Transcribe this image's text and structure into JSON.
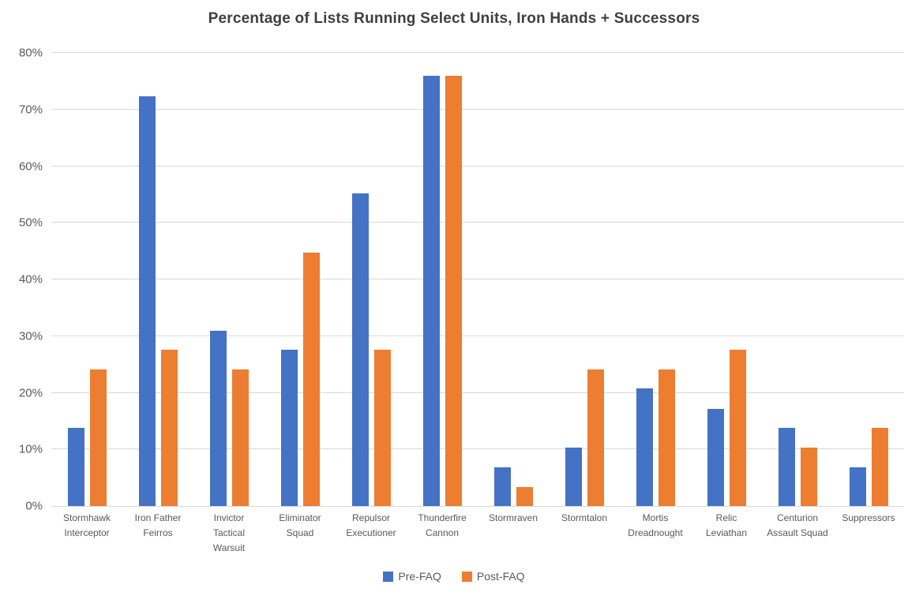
{
  "chart_data": {
    "type": "bar",
    "title": "Percentage of Lists Running Select Units, Iron Hands + Successors",
    "categories": [
      "Stormhawk Interceptor",
      "Iron Father Feirros",
      "Invictor Tactical Warsuit",
      "Eliminator Squad",
      "Repulsor Executioner",
      "Thunderfire Cannon",
      "Stormraven",
      "Stormtalon",
      "Mortis Dreadnought",
      "Relic Leviathan",
      "Centurion Assault Squad",
      "Suppressors"
    ],
    "series": [
      {
        "name": "Pre-FAQ",
        "color": "#4472C4",
        "values": [
          13.8,
          72.4,
          31.0,
          27.6,
          55.2,
          75.9,
          6.9,
          10.3,
          20.7,
          17.2,
          13.8,
          6.9
        ]
      },
      {
        "name": "Post-FAQ",
        "color": "#ED7D31",
        "values": [
          24.1,
          27.6,
          24.1,
          44.8,
          27.6,
          75.9,
          3.4,
          24.1,
          24.1,
          27.6,
          10.3,
          13.8
        ]
      }
    ],
    "xlabel": "",
    "ylabel": "",
    "ylim": [
      0,
      80
    ],
    "ytick_step": 10,
    "ytick_suffix": "%",
    "grid": true,
    "legend_position": "bottom",
    "colors": {
      "gridline": "#D9D9D9",
      "axis_line": "#D9D9D9",
      "title_text": "#3F3F3F",
      "tick_text": "#595959"
    }
  }
}
